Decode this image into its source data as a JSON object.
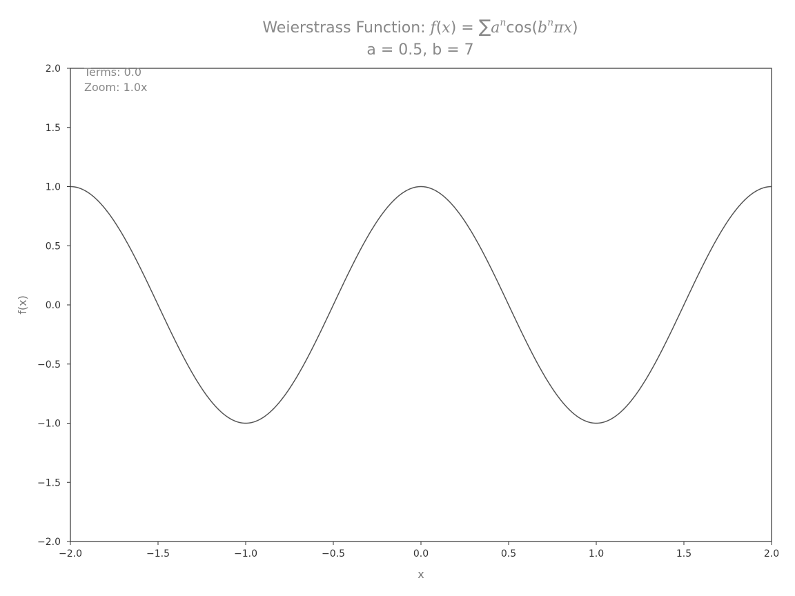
{
  "chart_data": {
    "type": "line",
    "title_prefix": "Weierstrass Function: ",
    "title_math": {
      "f": "f",
      "paren_open": "(",
      "x": "x",
      "paren_close": ")",
      "equals": " = ",
      "sum": "∑",
      "a": "a",
      "n": "n",
      "cos": "cos",
      "b": "b",
      "pi_x": "πx"
    },
    "subtitle": "a = 0.5, b = 7",
    "xlabel": "x",
    "ylabel": "f(x)",
    "xlim": [
      -2.0,
      2.0
    ],
    "ylim": [
      -2.0,
      2.0
    ],
    "xticks": [
      -2.0,
      -1.5,
      -1.0,
      -0.5,
      0.0,
      0.5,
      1.0,
      1.5,
      2.0
    ],
    "xtick_labels": [
      "−2.0",
      "−1.5",
      "−1.0",
      "−0.5",
      "0.0",
      "0.5",
      "1.0",
      "1.5",
      "2.0"
    ],
    "yticks": [
      2.0,
      1.5,
      1.0,
      0.5,
      0.0,
      -0.5,
      -1.0,
      -1.5,
      -2.0
    ],
    "ytick_labels": [
      "2.0",
      "1.5",
      "1.0",
      "0.5",
      "0.0",
      "−0.5",
      "−1.0",
      "−1.5",
      "−2.0"
    ],
    "grid": false,
    "annotations": {
      "terms": "Terms: 0.0",
      "zoom": "Zoom: 1.0x"
    },
    "series": [
      {
        "function": "cos(pi*x)",
        "a": 0.5,
        "b": 7,
        "terms": 0,
        "color": "#555555"
      }
    ]
  }
}
